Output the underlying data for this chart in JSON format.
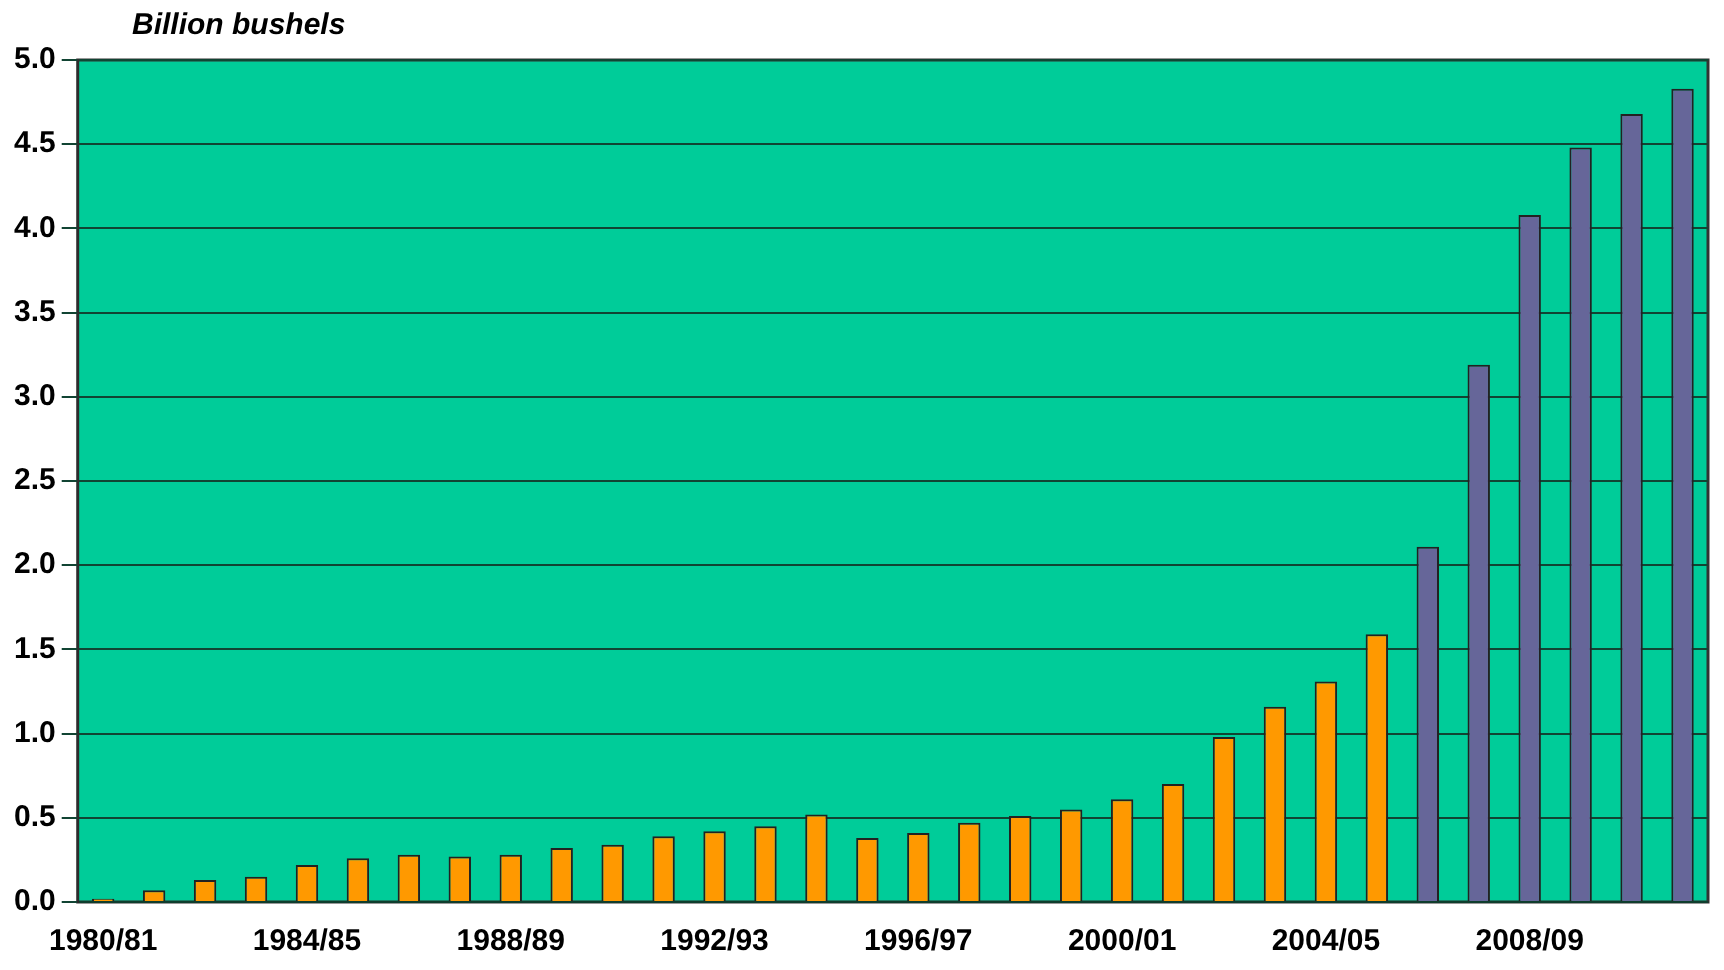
{
  "chart_data": {
    "type": "bar",
    "ylabel": "Billion bushels",
    "categories": [
      "1980/81",
      null,
      null,
      null,
      "1984/85",
      null,
      null,
      null,
      "1988/89",
      null,
      null,
      null,
      "1992/93",
      null,
      null,
      null,
      "1996/97",
      null,
      null,
      null,
      "2000/01",
      null,
      null,
      null,
      "2004/05",
      null,
      null,
      null,
      "2008/09",
      null,
      null,
      null
    ],
    "values": [
      0.02,
      0.07,
      0.13,
      0.15,
      0.22,
      0.26,
      0.28,
      0.27,
      0.28,
      0.32,
      0.34,
      0.39,
      0.42,
      0.45,
      0.52,
      0.38,
      0.41,
      0.47,
      0.51,
      0.55,
      0.61,
      0.7,
      0.98,
      1.16,
      1.31,
      1.59,
      2.11,
      3.19,
      4.08,
      4.48,
      4.68,
      4.83
    ],
    "colors": [
      "#ff9900",
      "#ff9900",
      "#ff9900",
      "#ff9900",
      "#ff9900",
      "#ff9900",
      "#ff9900",
      "#ff9900",
      "#ff9900",
      "#ff9900",
      "#ff9900",
      "#ff9900",
      "#ff9900",
      "#ff9900",
      "#ff9900",
      "#ff9900",
      "#ff9900",
      "#ff9900",
      "#ff9900",
      "#ff9900",
      "#ff9900",
      "#ff9900",
      "#ff9900",
      "#ff9900",
      "#ff9900",
      "#ff9900",
      "#666699",
      "#666699",
      "#666699",
      "#666699",
      "#666699",
      "#666699"
    ],
    "ylim": [
      0,
      5
    ],
    "yticks": [
      {
        "value": 0,
        "label": "0.0"
      },
      0.5,
      {
        "value": 1,
        "label": "1.0"
      },
      1.5,
      {
        "value": 2,
        "label": "2.0"
      },
      2.5,
      {
        "value": 3,
        "label": "3.0"
      },
      3.5,
      {
        "value": 4,
        "label": "4.0"
      },
      4.5,
      {
        "value": 5,
        "label": "5.0"
      }
    ],
    "grid": "y"
  }
}
